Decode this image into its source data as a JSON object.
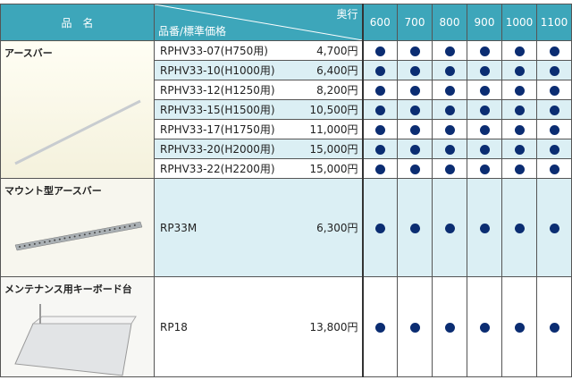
{
  "header": {
    "name": "品　名",
    "depth_label": "奥行",
    "part_price_label": "品番/標準価格",
    "depths": [
      "600",
      "700",
      "800",
      "900",
      "1000",
      "1100"
    ]
  },
  "groups": [
    {
      "name": "アースバー",
      "items": [
        {
          "part": "RPHV33-07(H750用)",
          "price": "4,700円"
        },
        {
          "part": "RPHV33-10(H1000用)",
          "price": "6,400円"
        },
        {
          "part": "RPHV33-12(H1250用)",
          "price": "8,200円"
        },
        {
          "part": "RPHV33-15(H1500用)",
          "price": "10,500円"
        },
        {
          "part": "RPHV33-17(H1750用)",
          "price": "11,000円"
        },
        {
          "part": "RPHV33-20(H2000用)",
          "price": "15,000円"
        },
        {
          "part": "RPHV33-22(H2200用)",
          "price": "15,000円"
        }
      ]
    },
    {
      "name": "マウント型アースバー",
      "items": [
        {
          "part": "RP33M",
          "price": "6,300円"
        }
      ]
    },
    {
      "name": "メンテナンス用キーボード台",
      "items": [
        {
          "part": "RP18",
          "price": "13,800円"
        }
      ]
    }
  ]
}
